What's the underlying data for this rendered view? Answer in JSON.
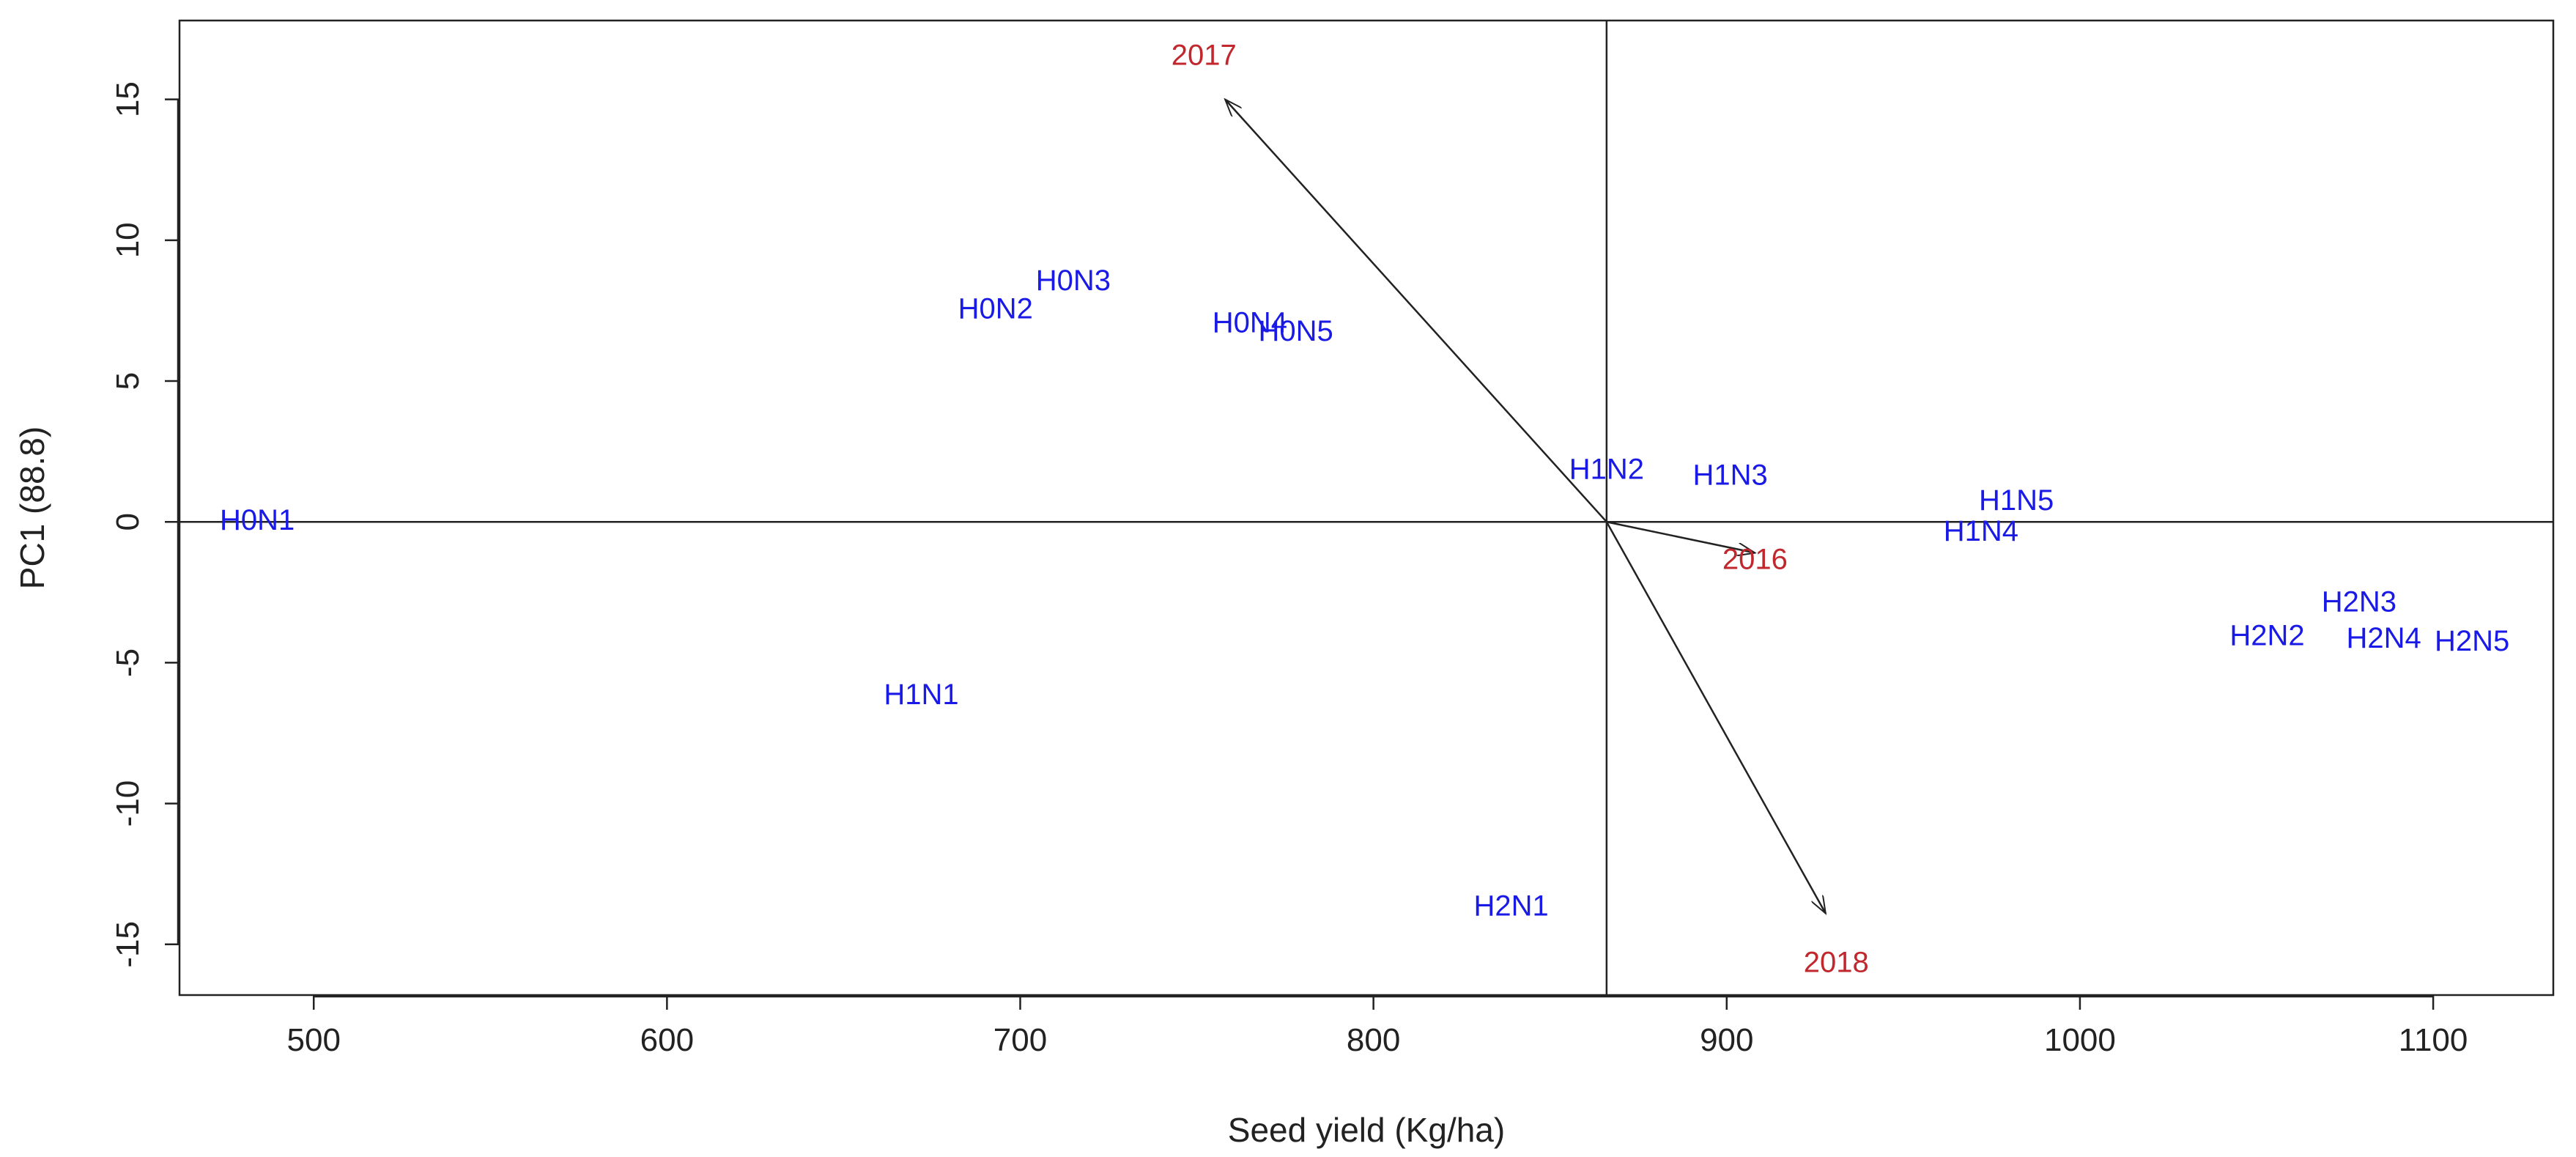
{
  "chart_data": {
    "type": "scatter",
    "title": "",
    "xlabel": "Seed yield (Kg/ha)",
    "ylabel": "PC1 (88.8)",
    "xlim": [
      462,
      1134
    ],
    "ylim": [
      -16.8,
      17.8
    ],
    "x_ticks": [
      500,
      600,
      700,
      800,
      900,
      1000,
      1100
    ],
    "y_ticks": [
      -15,
      -10,
      -5,
      0,
      5,
      10,
      15
    ],
    "grid": false,
    "reference_lines": {
      "x": 866,
      "y": 0
    },
    "origin": {
      "x": 866,
      "y": 0
    },
    "points": [
      {
        "label": "H0N1",
        "x": 484,
        "y": 0.0
      },
      {
        "label": "H0N2",
        "x": 693,
        "y": 7.5
      },
      {
        "label": "H0N3",
        "x": 715,
        "y": 8.5
      },
      {
        "label": "H0N4",
        "x": 765,
        "y": 7.0
      },
      {
        "label": "H0N5",
        "x": 778,
        "y": 6.7
      },
      {
        "label": "H1N1",
        "x": 672,
        "y": -6.2
      },
      {
        "label": "H1N2",
        "x": 866,
        "y": 1.8
      },
      {
        "label": "H1N3",
        "x": 901,
        "y": 1.6
      },
      {
        "label": "H1N4",
        "x": 972,
        "y": -0.4
      },
      {
        "label": "H1N5",
        "x": 982,
        "y": 0.7
      },
      {
        "label": "H2N1",
        "x": 839,
        "y": -13.7
      },
      {
        "label": "H2N2",
        "x": 1053,
        "y": -4.1
      },
      {
        "label": "H2N3",
        "x": 1079,
        "y": -2.9
      },
      {
        "label": "H2N4",
        "x": 1086,
        "y": -4.2
      },
      {
        "label": "H2N5",
        "x": 1111,
        "y": -4.3
      }
    ],
    "vectors": [
      {
        "label": "2017",
        "x": 758,
        "y": 15.0,
        "label_x": 752,
        "label_y": 16.5
      },
      {
        "label": "2016",
        "x": 908,
        "y": -1.1,
        "label_x": 908,
        "label_y": -1.4
      },
      {
        "label": "2018",
        "x": 928,
        "y": -13.9,
        "label_x": 931,
        "label_y": -15.7
      }
    ],
    "colors": {
      "points": "#1a1ae6",
      "vectors": "#222222",
      "vector_labels": "#c0282d",
      "axes": "#222222"
    }
  }
}
